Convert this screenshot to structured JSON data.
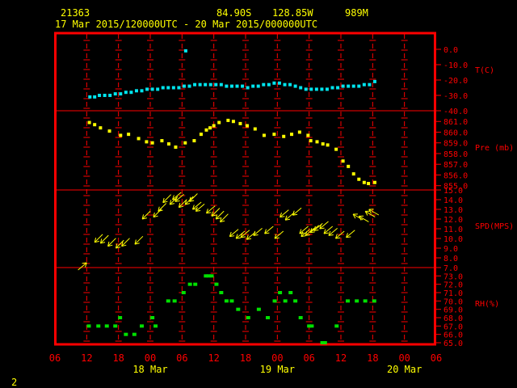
{
  "header": {
    "station": "21363",
    "lat": "84.90S",
    "lon": "128.85W",
    "elevation": "989M",
    "time_range": "17 Mar 2015/120000UTC - 20 Mar 2015/000000UTC"
  },
  "page_number": "2",
  "colors": {
    "frame": "#ff0000",
    "text": "#ffff00",
    "axis_labels": "#ff0000",
    "temperature": "#00e5ee",
    "pressure": "#ffff00",
    "wind": "#ffff00",
    "rh": "#00e000"
  },
  "chart_data": {
    "type": "scatter",
    "x_axis": {
      "unit": "hours since 06 UTC 17 Mar",
      "range": [
        0,
        72
      ],
      "tick_labels": [
        "06",
        "12",
        "18",
        "00",
        "06",
        "12",
        "18",
        "00",
        "06",
        "12",
        "18",
        "00",
        "06"
      ],
      "date_labels": [
        {
          "label": "18 Mar",
          "hour": 18
        },
        {
          "label": "19 Mar",
          "hour": 42
        },
        {
          "label": "20 Mar",
          "hour": 66
        }
      ]
    },
    "panels": [
      {
        "name": "T(C)",
        "range": [
          -40,
          10
        ],
        "tick_labels": [
          "0.0",
          "-10.0",
          "-20.0",
          "-30.0",
          "-40.0"
        ],
        "tick_values": [
          0,
          -10,
          -20,
          -30,
          -40
        ],
        "x": [
          6.6,
          7.5,
          8.4,
          9.4,
          10.4,
          11.4,
          12.4,
          13.4,
          14.4,
          15.4,
          16.4,
          17.4,
          18.4,
          19.4,
          20.4,
          21.4,
          22.4,
          23.4,
          24.4,
          25.4,
          26.4,
          27.4,
          28.4,
          29.4,
          30.4,
          31.4,
          32.4,
          33.4,
          34.4,
          35.4,
          36.4,
          37.4,
          38.4,
          39.4,
          40.4,
          41.4,
          42.4,
          43.4,
          44.4,
          45.4,
          46.4,
          47.4,
          48.4,
          49.4,
          50.4,
          51.4,
          52.4,
          53.4,
          54.4,
          55.4,
          56.4,
          57.4,
          58.4,
          59.4,
          60.4
        ],
        "y": [
          -31,
          -31,
          -30,
          -30,
          -30,
          -29,
          -29,
          -28,
          -28,
          -27,
          -27,
          -26,
          -26,
          -26,
          -25,
          -25,
          -25,
          -25,
          -24,
          -24,
          -23,
          -23,
          -23,
          -23,
          -23,
          -23,
          -24,
          -24,
          -24,
          -24,
          -25,
          -24,
          -24,
          -23,
          -23,
          -22,
          -22,
          -23,
          -23,
          -24,
          -25,
          -26,
          -26,
          -26,
          -26,
          -26,
          -25,
          -25,
          -24,
          -24,
          -24,
          -24,
          -23,
          -23,
          -21
        ],
        "outliers": [
          {
            "x": 24.7,
            "y": -1
          }
        ]
      },
      {
        "name": "Pre (mb)",
        "range": [
          854.6,
          862.0
        ],
        "tick_labels": [
          "861.0",
          "860.0",
          "859.0",
          "858.0",
          "857.0",
          "856.0",
          "855.0"
        ],
        "tick_values": [
          861,
          860,
          859,
          858,
          857,
          856,
          855
        ],
        "x": [
          6.5,
          7.5,
          8.6,
          10.3,
          12.4,
          13.9,
          15.8,
          17.3,
          18.4,
          20.2,
          21.5,
          22.8,
          24.6,
          26.3,
          27.6,
          28.6,
          29.3,
          30.0,
          31.0,
          32.7,
          33.7,
          35.0,
          36.3,
          37.8,
          39.5,
          41.4,
          43.2,
          44.7,
          46.2,
          47.8,
          48.3,
          49.5,
          50.6,
          51.5,
          53.1,
          54.4,
          55.4,
          56.4,
          57.4,
          58.4,
          59.2,
          60.4
        ],
        "y": [
          860.9,
          860.7,
          860.4,
          860.1,
          859.7,
          859.8,
          859.4,
          859.1,
          859.0,
          859.2,
          858.9,
          858.6,
          859.0,
          859.2,
          859.8,
          860.2,
          860.4,
          860.6,
          860.9,
          861.1,
          861.0,
          860.8,
          860.6,
          860.3,
          859.7,
          859.8,
          859.6,
          859.8,
          860.0,
          859.7,
          859.2,
          859.1,
          858.9,
          858.8,
          858.4,
          857.3,
          856.8,
          856.1,
          855.6,
          855.3,
          855.2,
          855.3
        ]
      },
      {
        "name": "SPD(MPS)",
        "range": [
          7,
          15
        ],
        "tick_labels": [
          "15.0",
          "14.0",
          "13.0",
          "12.0",
          "11.0",
          "10.0",
          "9.0",
          "8.0",
          "7.0"
        ],
        "tick_values": [
          15,
          14,
          13,
          12,
          11,
          10,
          9,
          8,
          7
        ],
        "x": [
          6.0,
          7.5,
          8.6,
          10.0,
          11.5,
          12.6,
          15.1,
          16.5,
          18.6,
          19.5,
          20.4,
          21.7,
          22.2,
          22.7,
          23.4,
          24.6,
          25.4,
          26.0,
          26.6,
          28.6,
          29.6,
          30.4,
          31.2,
          33.0,
          34.2,
          35.1,
          36.2,
          37.5,
          39.6,
          41.5,
          42.5,
          43.5,
          44.9,
          46.2,
          46.5,
          47.3,
          48.2,
          48.9,
          50.0,
          50.8,
          51.7,
          53.0,
          55.0,
          56.3,
          57.4,
          58.6,
          59.3
        ],
        "y": [
          7.5,
          9.6,
          9.5,
          9.2,
          9.0,
          9.2,
          9.4,
          12.0,
          12.2,
          12.8,
          13.7,
          13.5,
          14.0,
          13.8,
          13.2,
          13.5,
          13.8,
          13.0,
          12.8,
          12.6,
          12.3,
          12.0,
          11.7,
          10.2,
          10.0,
          10.1,
          9.9,
          10.3,
          10.5,
          10.0,
          12.2,
          11.9,
          12.4,
          10.5,
          10.2,
          10.3,
          10.6,
          10.8,
          11.0,
          10.5,
          10.3,
          10.0,
          10.1,
          12.5,
          12.3,
          12.8,
          13.0
        ],
        "dir": [
          220,
          45,
          45,
          45,
          45,
          45,
          45,
          45,
          45,
          45,
          45,
          45,
          40,
          40,
          45,
          45,
          45,
          40,
          40,
          40,
          45,
          45,
          45,
          40,
          40,
          40,
          40,
          40,
          40,
          40,
          40,
          40,
          40,
          40,
          40,
          40,
          40,
          40,
          40,
          40,
          40,
          40,
          40,
          330,
          330,
          330,
          330
        ]
      },
      {
        "name": "RH(%)",
        "range": [
          65,
          74
        ],
        "tick_labels": [
          "73.0",
          "72.0",
          "71.0",
          "70.0",
          "69.0",
          "68.0",
          "67.0",
          "66.0",
          "65.0"
        ],
        "tick_values": [
          73,
          72,
          71,
          70,
          69,
          68,
          67,
          66,
          65
        ],
        "x": [
          6.4,
          8.2,
          9.8,
          11.4,
          12.3,
          13.4,
          15.0,
          16.4,
          18.4,
          19.0,
          21.4,
          22.6,
          24.3,
          25.5,
          26.5,
          28.5,
          29.0,
          29.6,
          30.5,
          31.4,
          32.4,
          33.4,
          34.6,
          36.5,
          38.5,
          40.2,
          41.5,
          42.5,
          43.5,
          44.5,
          45.4,
          46.4,
          48.0,
          48.5,
          50.5,
          51.0,
          53.2,
          55.3,
          57.0,
          58.6,
          60.3
        ],
        "y": [
          67,
          67,
          67,
          67,
          68,
          66,
          66,
          67,
          68,
          67,
          70,
          70,
          71,
          72,
          72,
          73,
          73,
          73,
          72,
          71,
          70,
          70,
          69,
          68,
          69,
          68,
          70,
          71,
          70,
          71,
          70,
          68,
          67,
          67,
          65,
          65,
          67,
          70,
          70,
          70,
          70
        ]
      }
    ]
  }
}
